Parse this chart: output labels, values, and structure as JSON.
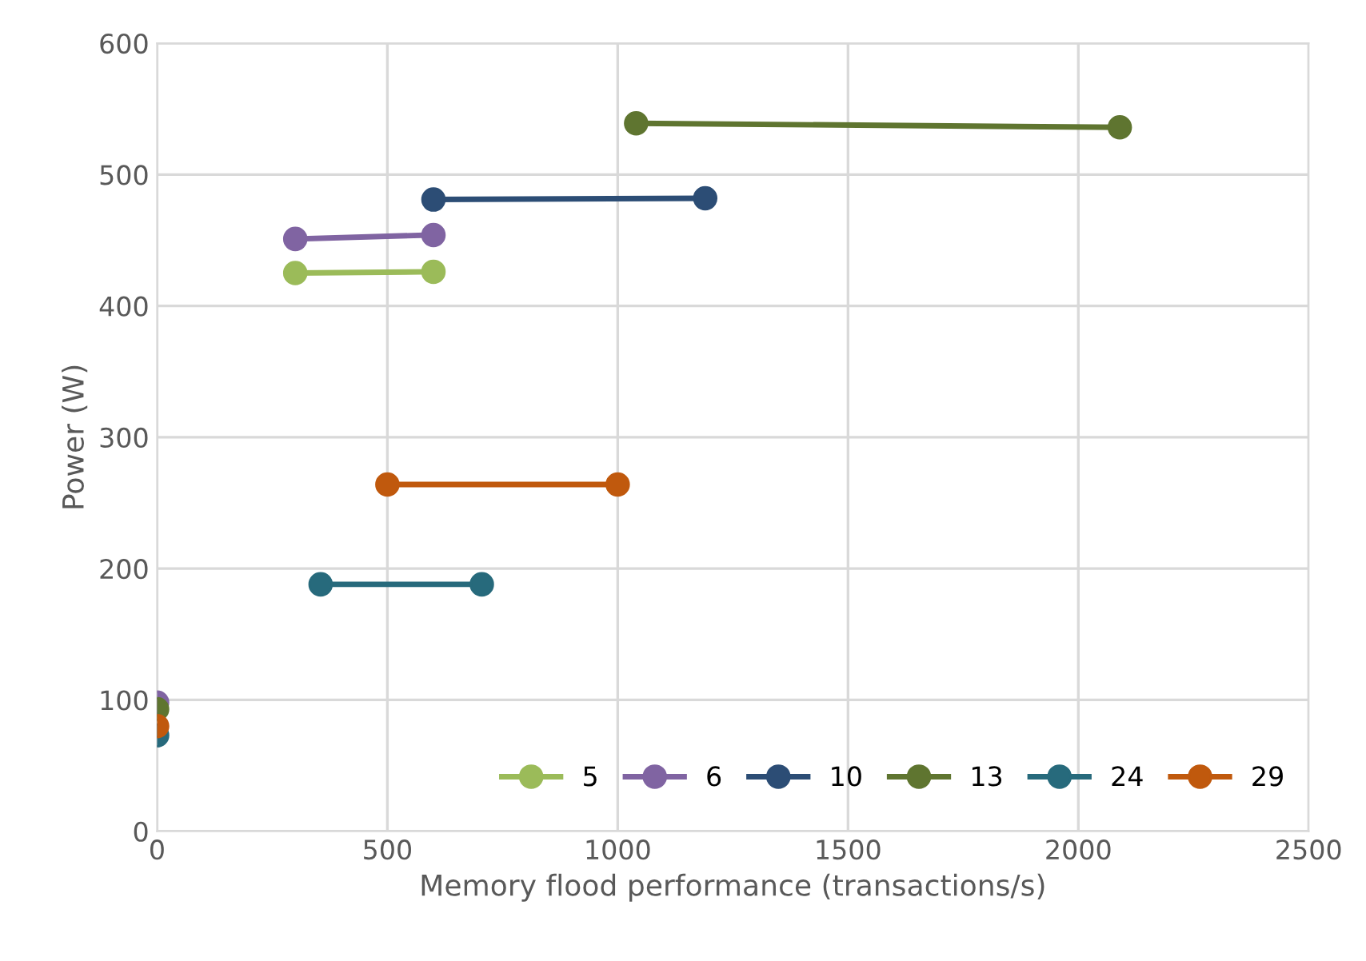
{
  "chart_data": {
    "type": "line",
    "xlabel": "Memory flood performance (transactions/s)",
    "ylabel": "Power (W)",
    "xlim": [
      0,
      2500
    ],
    "xticks": [
      0,
      500,
      1000,
      1500,
      2000,
      2500
    ],
    "ylim": [
      0,
      600
    ],
    "yticks": [
      0,
      100,
      200,
      300,
      400,
      500,
      600
    ],
    "grid": true,
    "legend": "bottom right",
    "marker": "circle",
    "line_style": "solid",
    "series": [
      {
        "name": "5",
        "color": "#9bbb59",
        "x": [
          300,
          600
        ],
        "values": [
          425,
          426
        ]
      },
      {
        "name": "6",
        "color": "#8064a2",
        "x": [
          0,
          null,
          300,
          600
        ],
        "values": [
          98,
          null,
          451,
          454
        ]
      },
      {
        "name": "10",
        "color": "#2c4d75",
        "x": [
          600,
          1190
        ],
        "values": [
          481,
          482
        ]
      },
      {
        "name": "13",
        "color": "#5f7530",
        "x": [
          0,
          null,
          1040,
          2090
        ],
        "values": [
          93,
          null,
          539,
          536
        ]
      },
      {
        "name": "24",
        "color": "#276a7c",
        "x": [
          0,
          null,
          355,
          705
        ],
        "values": [
          73,
          null,
          188,
          188
        ]
      },
      {
        "name": "29",
        "color": "#c0590d",
        "x": [
          0,
          null,
          500,
          1000
        ],
        "values": [
          80,
          null,
          264,
          264
        ]
      }
    ]
  }
}
